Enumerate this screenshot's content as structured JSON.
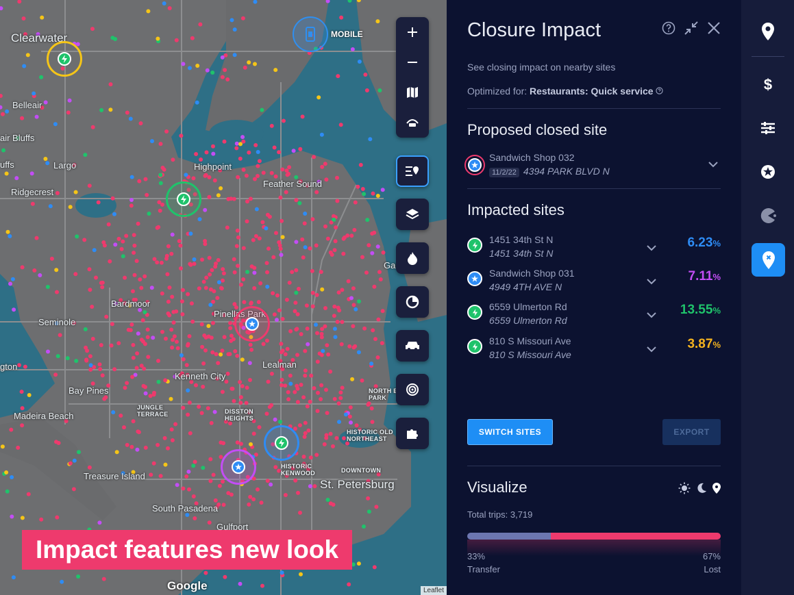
{
  "map": {
    "mobile_label": "MOBILE",
    "promo_text": "Impact features new look",
    "google_label": "Google",
    "leaflet_label": "Leaflet",
    "labels": [
      {
        "text": "Clearwater",
        "cls": "city"
      },
      {
        "text": "Belleair",
        "cls": ""
      },
      {
        "text": "air Bluffs",
        "cls": ""
      },
      {
        "text": "uffs",
        "cls": ""
      },
      {
        "text": "Largo",
        "cls": ""
      },
      {
        "text": "Ridgecrest",
        "cls": ""
      },
      {
        "text": "Highpoint",
        "cls": ""
      },
      {
        "text": "Feather Sound",
        "cls": ""
      },
      {
        "text": "Bardmoor",
        "cls": ""
      },
      {
        "text": "Seminole",
        "cls": ""
      },
      {
        "text": "Pinellas Park",
        "cls": ""
      },
      {
        "text": "Lealman",
        "cls": ""
      },
      {
        "text": "Kenneth City",
        "cls": ""
      },
      {
        "text": "Bay Pines",
        "cls": ""
      },
      {
        "text": "Madeira Beach",
        "cls": ""
      },
      {
        "text": "JUNGLE TERRACE",
        "cls": "small"
      },
      {
        "text": "DISSTON HEIGHTS",
        "cls": "small"
      },
      {
        "text": "NORTH EAST PARK",
        "cls": "small"
      },
      {
        "text": "HISTORIC OLD NORTHEAST",
        "cls": "small"
      },
      {
        "text": "HISTORIC KENWOOD",
        "cls": "small"
      },
      {
        "text": "DOWNTOWN",
        "cls": "small"
      },
      {
        "text": "Treasure Island",
        "cls": ""
      },
      {
        "text": "St. Petersburg",
        "cls": "city"
      },
      {
        "text": "South Pasadena",
        "cls": ""
      },
      {
        "text": "Gulfport",
        "cls": ""
      },
      {
        "text": "Gan",
        "cls": ""
      },
      {
        "text": "gton",
        "cls": ""
      }
    ]
  },
  "panel": {
    "title": "Closure Impact",
    "subtitle": "See closing impact on nearby sites",
    "optimized_prefix": "Optimized for: ",
    "optimized_value": "Restaurants: Quick service",
    "proposed_heading": "Proposed closed site",
    "proposed": {
      "name": "Sandwich Shop 032",
      "date": "11/2/22",
      "address": "4394 PARK BLVD N"
    },
    "impacted_heading": "Impacted sites",
    "impacted": [
      {
        "name": "1451 34th St N",
        "address": "1451 34th St N",
        "value": "6.23",
        "unit": "%",
        "color": "#2e8cf5",
        "icon": "bolt-icon",
        "icon_color": "#1fc36b"
      },
      {
        "name": "Sandwich Shop 031",
        "address": "4949 4TH AVE N",
        "value": "7.11",
        "unit": "%",
        "color": "#c34df5",
        "icon": "star-icon",
        "icon_color": "#2e8cf5"
      },
      {
        "name": "6559 Ulmerton Rd",
        "address": "6559 Ulmerton Rd",
        "value": "13.55",
        "unit": "%",
        "color": "#1fc36b",
        "icon": "bolt-icon",
        "icon_color": "#1fc36b"
      },
      {
        "name": "810 S Missouri Ave",
        "address": "810 S Missouri Ave",
        "value": "3.87",
        "unit": "%",
        "color": "#f5b31f",
        "icon": "bolt-icon",
        "icon_color": "#1fc36b"
      }
    ],
    "switch_label": "SWITCH SITES",
    "export_label": "EXPORT",
    "visualize_heading": "Visualize",
    "total_trips": "Total trips: 3,719",
    "transfer": {
      "percent": "33%",
      "label": "Transfer",
      "fraction": 0.33,
      "color": "#6c76b0"
    },
    "lost": {
      "percent": "67%",
      "label": "Lost",
      "fraction": 0.67,
      "color": "#ee3a6d"
    }
  },
  "rail": {
    "items": [
      "location-pin-icon",
      "dollar-icon",
      "sliders-icon",
      "star-icon",
      "pacman-icon",
      "closure-pin-icon"
    ],
    "active": "closure-pin-icon"
  },
  "colors": {
    "accent": "#1e8ef5",
    "pink": "#ee3a6d",
    "panel_bg": "#0c1230"
  }
}
